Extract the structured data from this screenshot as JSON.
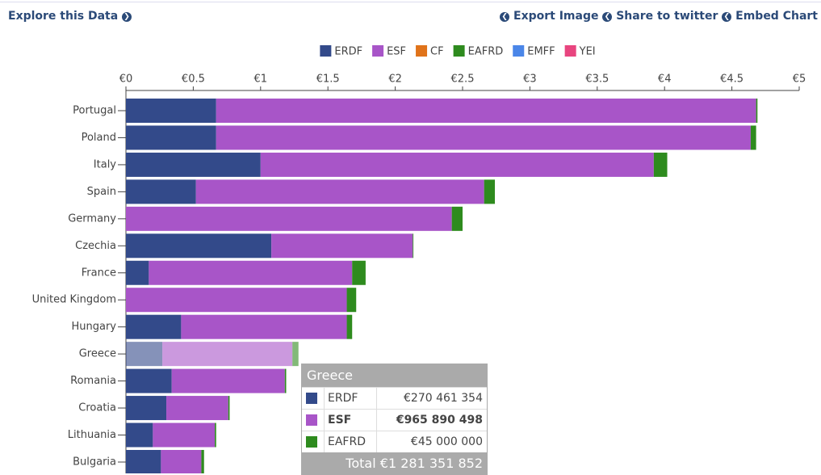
{
  "header": {
    "explore": "Explore this Data",
    "links": [
      "Export Image",
      "Share to twitter",
      "Embed Chart"
    ]
  },
  "chart_data": {
    "type": "stacked_barh",
    "categories": [
      "Portugal",
      "Poland",
      "Italy",
      "Spain",
      "Germany",
      "Czechia",
      "France",
      "United Kingdom",
      "Hungary",
      "Greece",
      "Romania",
      "Croatia",
      "Lithuania",
      "Bulgaria"
    ],
    "series": [
      {
        "name": "ERDF",
        "color": "#334a8a",
        "values": [
          0.67,
          0.67,
          1.0,
          0.52,
          0,
          1.08,
          0.17,
          0,
          0.41,
          0.270461354,
          0.34,
          0.3,
          0.2,
          0.26
        ]
      },
      {
        "name": "ESF",
        "color": "#a855c8",
        "values": [
          4.01,
          3.97,
          2.92,
          2.14,
          2.42,
          1.05,
          1.51,
          1.64,
          1.23,
          0.965890498,
          0.84,
          0.46,
          0.46,
          0.3
        ]
      },
      {
        "name": "CF",
        "color": "#e0731a",
        "values": [
          0,
          0,
          0,
          0,
          0,
          0,
          0,
          0,
          0,
          0,
          0,
          0,
          0,
          0
        ]
      },
      {
        "name": "EAFRD",
        "color": "#2e8b1e",
        "values": [
          0.01,
          0.04,
          0.1,
          0.08,
          0.08,
          0.005,
          0.1,
          0.07,
          0.04,
          0.045,
          0.01,
          0.01,
          0.01,
          0.02
        ]
      },
      {
        "name": "EMFF",
        "color": "#4a86e8",
        "values": [
          0,
          0,
          0,
          0,
          0,
          0,
          0,
          0,
          0,
          0,
          0,
          0,
          0,
          0
        ]
      },
      {
        "name": "YEI",
        "color": "#e8457f",
        "values": [
          0,
          0,
          0,
          0,
          0,
          0,
          0,
          0,
          0,
          0,
          0,
          0,
          0,
          0
        ]
      }
    ],
    "xlim": [
      0,
      5
    ],
    "xticks": [
      {
        "value": 0,
        "label": "€0"
      },
      {
        "value": 0.5,
        "label": "€0.5"
      },
      {
        "value": 1,
        "label": "€1"
      },
      {
        "value": 1.5,
        "label": "€1.5"
      },
      {
        "value": 2,
        "label": "€2"
      },
      {
        "value": 2.5,
        "label": "€2.5"
      },
      {
        "value": 3,
        "label": "€3"
      },
      {
        "value": 3.5,
        "label": "€3.5"
      },
      {
        "value": 4,
        "label": "€4"
      },
      {
        "value": 4.5,
        "label": "€4.5"
      },
      {
        "value": 5,
        "label": "€5"
      }
    ],
    "legend": "top",
    "tooltip": {
      "category": "Greece",
      "rows": [
        {
          "name": "ERDF",
          "color": "#334a8a",
          "value": "€270 461 354"
        },
        {
          "name": "ESF",
          "color": "#a855c8",
          "value": "€965 890 498"
        },
        {
          "name": "EAFRD",
          "color": "#2e8b1e",
          "value": "€45 000 000"
        }
      ],
      "total_label": "Total",
      "total": "€1 281 351 852"
    }
  }
}
